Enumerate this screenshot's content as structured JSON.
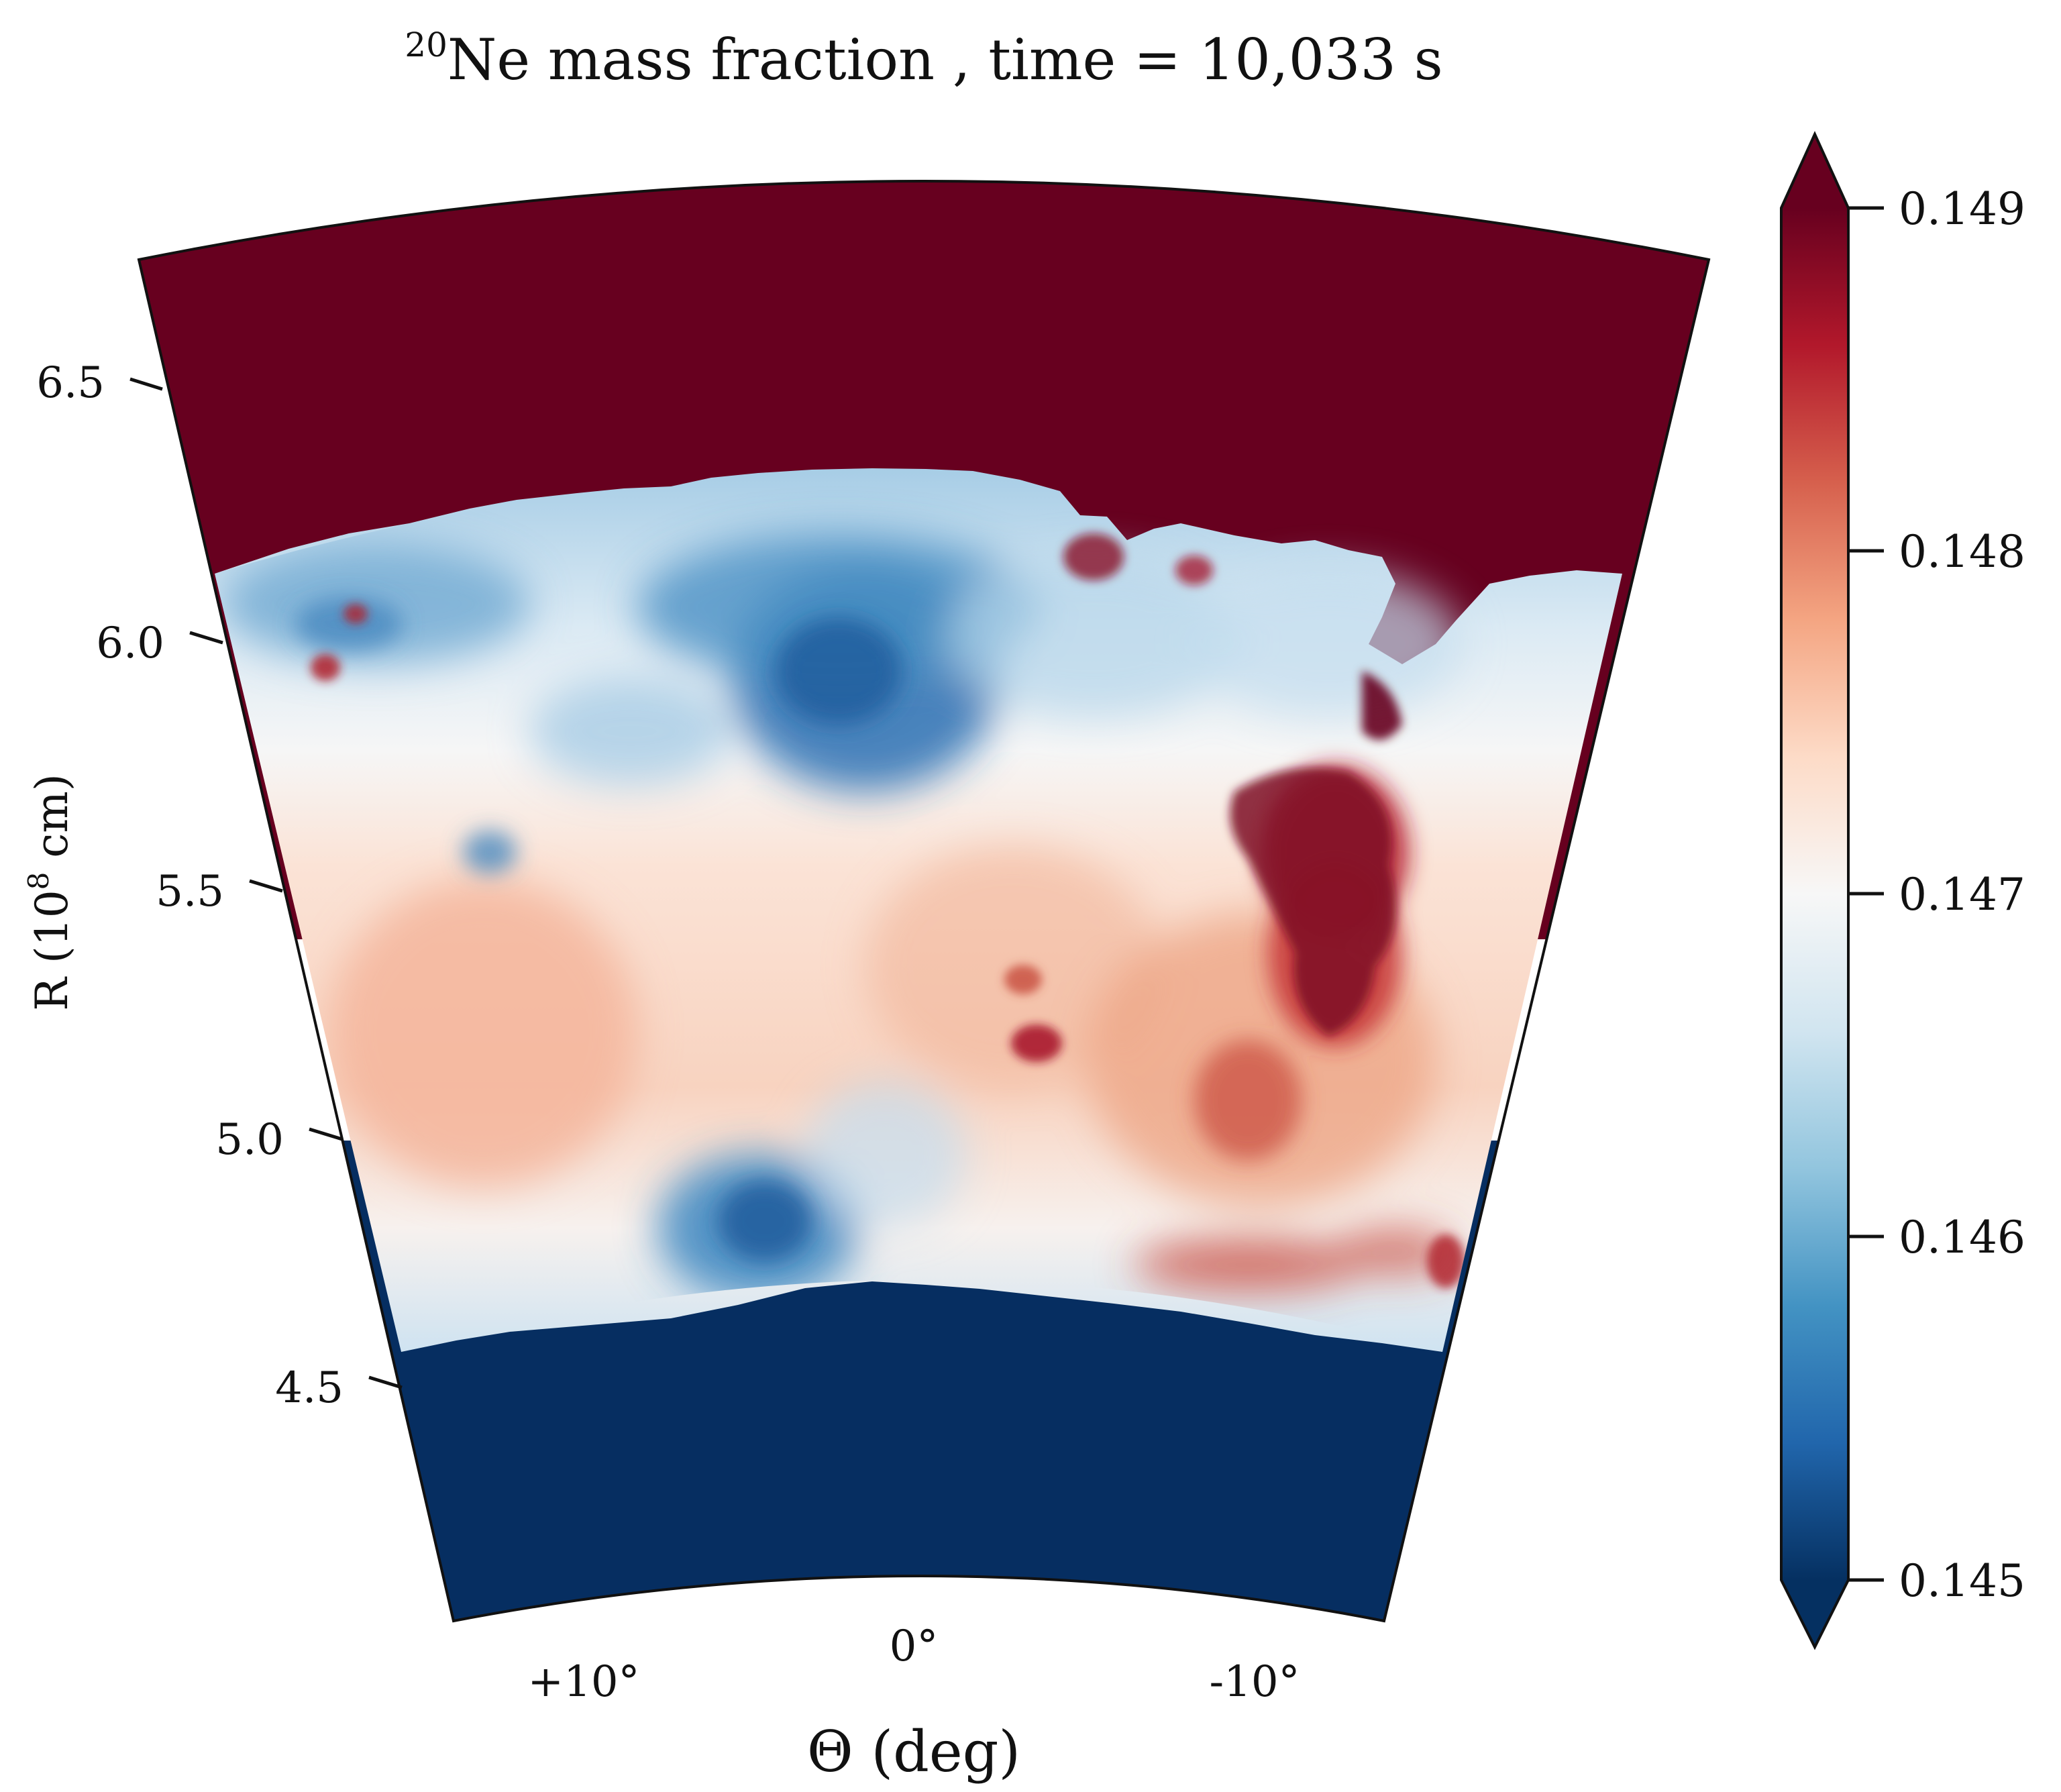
{
  "chart_data": {
    "type": "heatmap",
    "projection": "polar-wedge",
    "title_sup": "20",
    "title_main": "Ne mass fraction , time = 10,033 s",
    "xlabel": "Θ (deg)",
    "ylabel_prefix": "R (10",
    "ylabel_sup": "8",
    "ylabel_suffix": " cm)",
    "theta_range_deg": [
      -14,
      14
    ],
    "r_range": [
      4.1,
      6.8
    ],
    "x_ticks": [
      {
        "value": 10,
        "label": "+10°"
      },
      {
        "value": 0,
        "label": "0°"
      },
      {
        "value": -10,
        "label": "-10°"
      }
    ],
    "y_ticks": [
      {
        "value": 4.5,
        "label": "4.5"
      },
      {
        "value": 5.0,
        "label": "5.0"
      },
      {
        "value": 5.5,
        "label": "5.5"
      },
      {
        "value": 6.0,
        "label": "6.0"
      },
      {
        "value": 6.5,
        "label": "6.5"
      }
    ],
    "colorbar": {
      "colormap": "RdBu_r",
      "range": [
        0.145,
        0.149
      ],
      "extend": "both",
      "ticks": [
        {
          "value": 0.145,
          "label": "0.145"
        },
        {
          "value": 0.146,
          "label": "0.146"
        },
        {
          "value": 0.147,
          "label": "0.147"
        },
        {
          "value": 0.148,
          "label": "0.148"
        },
        {
          "value": 0.149,
          "label": "0.149"
        }
      ],
      "colors": [
        "#053061",
        "#2166ac",
        "#4393c3",
        "#92c5de",
        "#d1e5f0",
        "#f7f7f7",
        "#fddbc7",
        "#f4a582",
        "#d6604d",
        "#b2182b",
        "#67001f"
      ]
    },
    "regions": [
      {
        "name": "upper-saturated-layer",
        "r_range": [
          6.12,
          6.8
        ],
        "value": 0.149
      },
      {
        "name": "convective-zone",
        "r_range": [
          4.58,
          6.12
        ],
        "value": 0.147
      },
      {
        "name": "lower-saturated-layer",
        "r_range": [
          4.1,
          4.58
        ],
        "value": 0.145
      }
    ]
  }
}
